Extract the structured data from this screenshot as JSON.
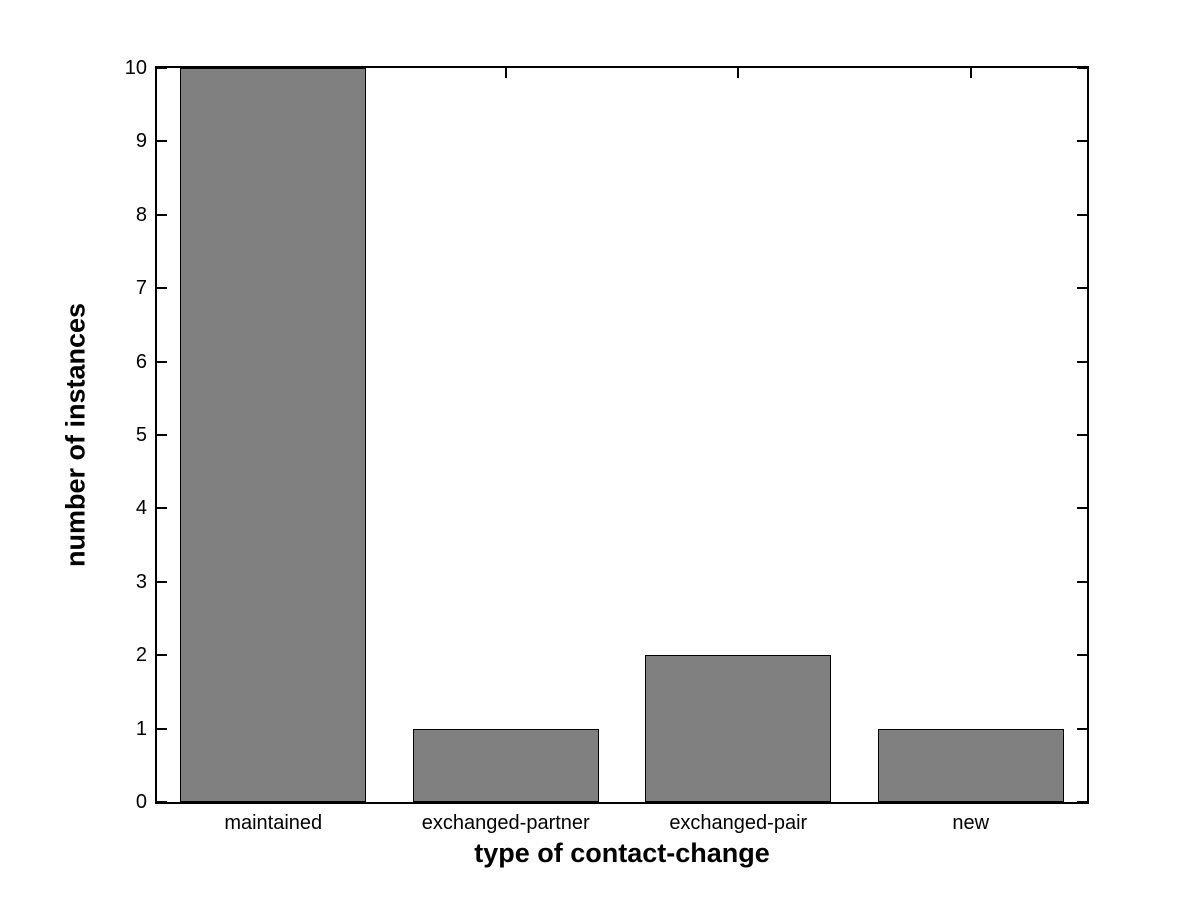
{
  "chart_data": {
    "type": "bar",
    "categories": [
      "maintained",
      "exchanged-partner",
      "exchanged-pair",
      "new"
    ],
    "values": [
      10,
      1,
      2,
      1
    ],
    "xlabel": "type of contact-change",
    "ylabel": "number of instances",
    "ylim": [
      0,
      10
    ],
    "yticks": [
      0,
      1,
      2,
      3,
      4,
      5,
      6,
      7,
      8,
      9,
      10
    ],
    "bar_color": "#808080",
    "bar_edge_color": "#000000",
    "axis_color": "#000000",
    "background_color": "#ffffff",
    "grid": false,
    "legend": "none",
    "bar_width_fraction": 0.8
  }
}
